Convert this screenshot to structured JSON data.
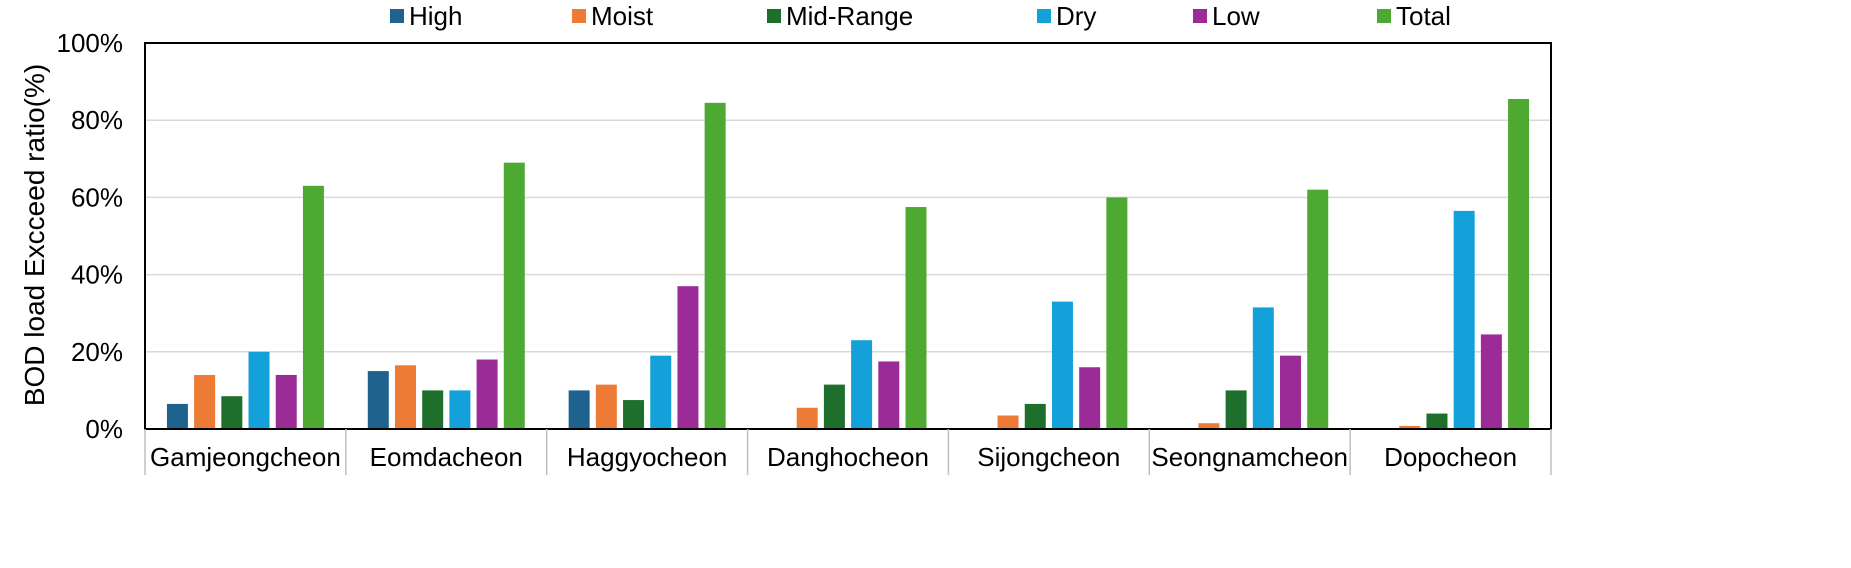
{
  "chart_data": {
    "type": "bar",
    "title": "",
    "xlabel": "",
    "ylabel": "BOD load Excceed ratio(%)",
    "ylim": [
      0,
      100
    ],
    "yticks": [
      "0%",
      "20%",
      "40%",
      "60%",
      "80%",
      "100%"
    ],
    "ytick_values": [
      0,
      20,
      40,
      60,
      80,
      100
    ],
    "grid": true,
    "legend_position": "top",
    "categories": [
      "Gamjeongcheon",
      "Eomdacheon",
      "Haggyocheon",
      "Danghocheon",
      "Sijongcheon",
      "Seongnamcheon",
      "Dopocheon"
    ],
    "series": [
      {
        "name": "High",
        "color": "#1f628e",
        "values": [
          6.5,
          15,
          10,
          0,
          0,
          0,
          0
        ]
      },
      {
        "name": "Moist",
        "color": "#ee7b35",
        "values": [
          14,
          16.5,
          11.5,
          5.5,
          3.5,
          1.5,
          0.8
        ]
      },
      {
        "name": "Mid-Range",
        "color": "#1e6f2b",
        "values": [
          8.5,
          10,
          7.5,
          11.5,
          6.5,
          10,
          4
        ]
      },
      {
        "name": "Dry",
        "color": "#14a1d9",
        "values": [
          20,
          10,
          19,
          23,
          33,
          31.5,
          56.5
        ]
      },
      {
        "name": "Low",
        "color": "#9b2c97",
        "values": [
          14,
          18,
          37,
          17.5,
          16,
          19,
          24.5
        ]
      },
      {
        "name": "Total",
        "color": "#4da931",
        "values": [
          63,
          69,
          84.5,
          57.5,
          60,
          62,
          85.5
        ]
      }
    ]
  }
}
